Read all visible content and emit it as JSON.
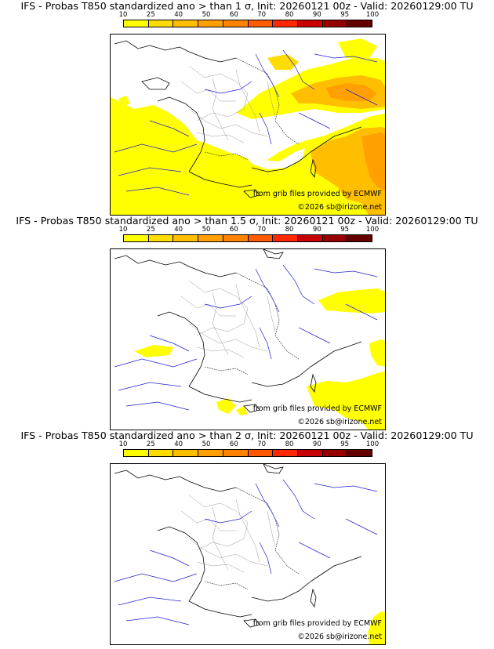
{
  "colorbar": {
    "ticks": [
      "10",
      "25",
      "40",
      "50",
      "60",
      "70",
      "80",
      "90",
      "95",
      "100"
    ],
    "colors": [
      "#ffff00",
      "#ffdc00",
      "#ffbe00",
      "#ffa000",
      "#ff8200",
      "#ff5a00",
      "#ff2800",
      "#c80000",
      "#960000",
      "#640000"
    ]
  },
  "credit_source": "from grib files provided by ECMWF",
  "credit_copyright": "©2026 sb@irizone.net",
  "panels": [
    {
      "title": "IFS - Probas T850  standardized ano > than 1 σ, Init: 20260121 00z - Valid: 20260129:00 TU"
    },
    {
      "title": "IFS - Probas T850  standardized ano > than 1.5 σ, Init: 20260121 00z - Valid: 20260129:00 TU"
    },
    {
      "title": "IFS - Probas T850  standardized ano > than 2 σ, Init: 20260121 00z - Valid: 20260129:00 TU"
    }
  ]
}
